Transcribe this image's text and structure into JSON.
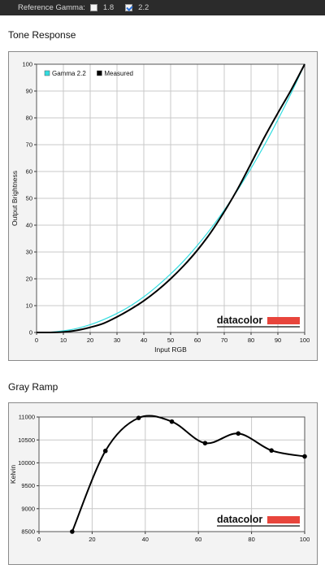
{
  "toolbar": {
    "label": "Reference Gamma:",
    "options": [
      {
        "label": "1.8",
        "checked": false
      },
      {
        "label": "2.2",
        "checked": true
      }
    ]
  },
  "tone_title": "Tone Response",
  "gray_title": "Gray Ramp",
  "logo_text": "datacolor",
  "chart_data": [
    {
      "type": "line",
      "title": "Tone Response",
      "xlabel": "Input RGB",
      "ylabel": "Output Brightness",
      "xlim": [
        0,
        100
      ],
      "ylim": [
        0,
        100
      ],
      "xticks": [
        "0",
        "10",
        "20",
        "30",
        "40",
        "50",
        "60",
        "70",
        "80",
        "90",
        "100"
      ],
      "yticks": [
        "0",
        "10",
        "20",
        "30",
        "40",
        "50",
        "60",
        "70",
        "80",
        "90",
        "100"
      ],
      "grid": true,
      "legend": "top-left",
      "series": [
        {
          "name": "Gamma 2.2",
          "color": "#33dde0",
          "x": [
            0,
            5,
            10,
            15,
            20,
            25,
            30,
            35,
            40,
            45,
            50,
            55,
            60,
            65,
            70,
            75,
            80,
            85,
            90,
            95,
            100
          ],
          "y": [
            0,
            0.1,
            0.6,
            1.5,
            2.9,
            4.8,
            7.1,
            9.9,
            13.3,
            17.3,
            21.8,
            26.8,
            32.5,
            38.7,
            45.6,
            53.1,
            61.2,
            69.9,
            79.3,
            89.3,
            100
          ]
        },
        {
          "name": "Measured",
          "color": "#000000",
          "x": [
            0,
            5,
            10,
            15,
            20,
            25,
            30,
            35,
            40,
            45,
            50,
            55,
            60,
            65,
            70,
            75,
            80,
            85,
            90,
            95,
            100
          ],
          "y": [
            0,
            0,
            0.2,
            0.8,
            1.9,
            3.4,
            5.8,
            8.6,
            11.8,
            15.6,
            20,
            25,
            30.7,
            37.3,
            45,
            53.5,
            63,
            72.8,
            81.8,
            90.5,
            100
          ]
        }
      ]
    },
    {
      "type": "line",
      "title": "Gray Ramp",
      "xlabel": "",
      "ylabel": "Kelvin",
      "xlim": [
        0,
        100
      ],
      "ylim": [
        8500,
        11000
      ],
      "xticks": [
        "0",
        "20",
        "40",
        "60",
        "80",
        "100"
      ],
      "yticks": [
        "8500",
        "9000",
        "9500",
        "10000",
        "10500",
        "11000"
      ],
      "grid": true,
      "series": [
        {
          "name": "",
          "color": "#000000",
          "x": [
            12.5,
            25,
            37.5,
            50,
            62.5,
            75,
            87.5,
            100
          ],
          "y": [
            8500,
            10260,
            10980,
            10900,
            10430,
            10640,
            10270,
            10140
          ]
        }
      ]
    }
  ]
}
